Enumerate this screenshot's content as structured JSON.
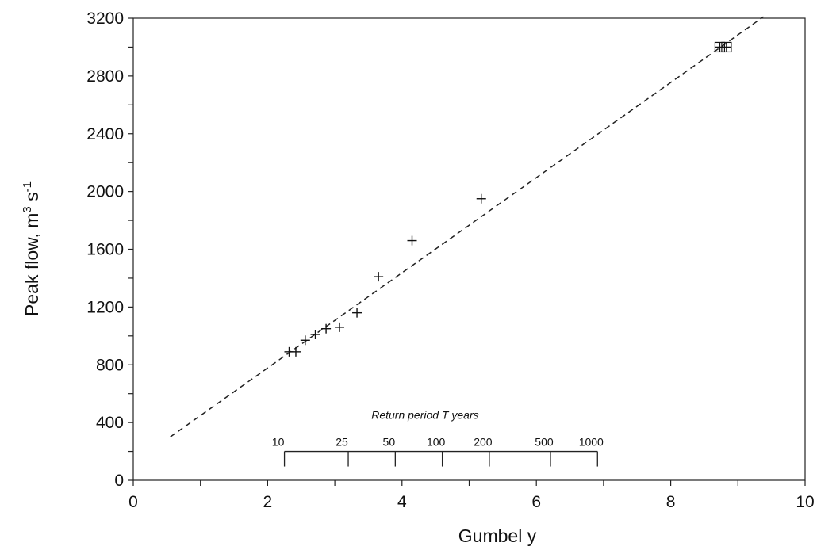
{
  "chart_data": {
    "type": "scatter",
    "title": "",
    "xlabel": "Gumbel y",
    "ylabel": "Peak flow, m3 s-1",
    "ylabel_parts": {
      "text": "Peak flow, m",
      "sup1": "3",
      "mid": " s",
      "sup2": "-1"
    },
    "xlim": [
      0,
      10
    ],
    "ylim": [
      0,
      3200
    ],
    "x_ticks": [
      0,
      2,
      4,
      6,
      8,
      10
    ],
    "y_ticks": [
      0,
      400,
      800,
      1200,
      1600,
      2000,
      2400,
      2800,
      3200
    ],
    "grid": false,
    "series": [
      {
        "marker": "plus",
        "points": [
          {
            "x": 2.32,
            "y": 890
          },
          {
            "x": 2.42,
            "y": 890
          },
          {
            "x": 2.56,
            "y": 970
          },
          {
            "x": 2.71,
            "y": 1010
          },
          {
            "x": 2.87,
            "y": 1050
          },
          {
            "x": 3.07,
            "y": 1060
          },
          {
            "x": 3.33,
            "y": 1160
          },
          {
            "x": 3.65,
            "y": 1410
          },
          {
            "x": 4.15,
            "y": 1660
          },
          {
            "x": 5.18,
            "y": 1950
          }
        ]
      },
      {
        "marker": "boxed-plus",
        "points": [
          {
            "x": 8.73,
            "y": 3000
          },
          {
            "x": 8.83,
            "y": 3000
          }
        ]
      }
    ],
    "fit_line": {
      "style": "dashed",
      "x": [
        0.55,
        9.38
      ],
      "y": [
        300,
        3210
      ]
    },
    "return_period_scale": {
      "title": "Return period T years",
      "y_level": 200,
      "ticks": [
        {
          "label": "10",
          "gumbel_y": 2.25
        },
        {
          "label": "25",
          "gumbel_y": 3.2
        },
        {
          "label": "50",
          "gumbel_y": 3.9
        },
        {
          "label": "100",
          "gumbel_y": 4.6
        },
        {
          "label": "200",
          "gumbel_y": 5.3
        },
        {
          "label": "500",
          "gumbel_y": 6.21
        },
        {
          "label": "1000",
          "gumbel_y": 6.91
        }
      ]
    }
  }
}
